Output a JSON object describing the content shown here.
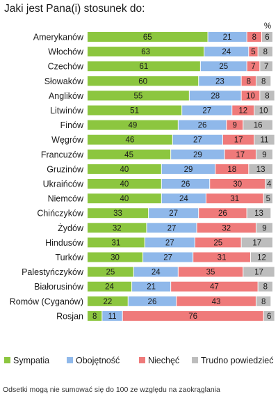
{
  "chart_data": {
    "type": "bar",
    "orientation": "horizontal",
    "stacked": true,
    "title": "Jaki jest Pana(i) stosunek do:",
    "unit_label": "%",
    "categories": [
      "Amerykanów",
      "Włochów",
      "Czechów",
      "Słowaków",
      "Anglików",
      "Litwinów",
      "Finów",
      "Węgrów",
      "Francuzów",
      "Gruzinów",
      "Ukraińców",
      "Niemców",
      "Chińczyków",
      "Żydów",
      "Hindusów",
      "Turków",
      "Palestyńczyków",
      "Białorusinów",
      "Romów (Cyganów)",
      "Rosjan"
    ],
    "series": [
      {
        "name": "Sympatia",
        "color": "#8cc63f",
        "values": [
          65,
          63,
          61,
          60,
          55,
          51,
          49,
          46,
          45,
          40,
          40,
          40,
          33,
          32,
          31,
          30,
          25,
          24,
          22,
          8
        ]
      },
      {
        "name": "Obojętność",
        "color": "#8fb8ea",
        "values": [
          21,
          24,
          25,
          23,
          28,
          27,
          26,
          27,
          29,
          29,
          26,
          24,
          27,
          27,
          27,
          27,
          24,
          21,
          26,
          11
        ]
      },
      {
        "name": "Niechęć",
        "color": "#ef7a7a",
        "values": [
          8,
          5,
          7,
          8,
          10,
          12,
          9,
          17,
          17,
          18,
          30,
          31,
          26,
          32,
          25,
          31,
          35,
          47,
          43,
          76
        ]
      },
      {
        "name": "Trudno powiedzieć",
        "color": "#bdbdbd",
        "values": [
          6,
          8,
          7,
          8,
          8,
          10,
          16,
          11,
          9,
          13,
          4,
          5,
          13,
          9,
          17,
          12,
          17,
          8,
          8,
          6
        ]
      }
    ],
    "legend_position": "bottom",
    "xlim": [
      0,
      100
    ],
    "grid": false
  },
  "footnote": "Odsetki mogą nie sumować się do 100 ze względu na zaokrąglania"
}
